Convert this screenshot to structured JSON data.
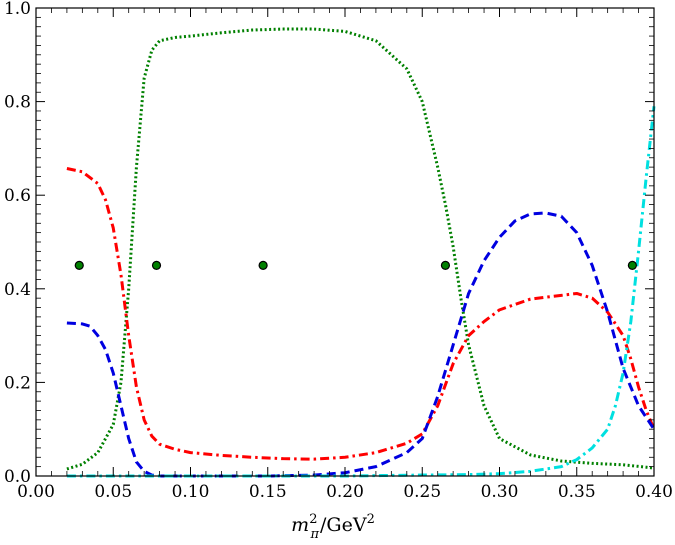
{
  "chart_data": {
    "type": "line",
    "title": "",
    "xlabel": {
      "base": "m",
      "sub": "π",
      "sup": "2",
      "rest": "/GeV",
      "rest_sup": "2"
    },
    "ylabel": "",
    "xlim": [
      0.0,
      0.4
    ],
    "ylim": [
      0.0,
      1.0
    ],
    "x_ticks": [
      "0.00",
      "0.05",
      "0.10",
      "0.15",
      "0.20",
      "0.25",
      "0.30",
      "0.35",
      "0.40"
    ],
    "x_tick_values": [
      0.0,
      0.05,
      0.1,
      0.15,
      0.2,
      0.25,
      0.3,
      0.35,
      0.4
    ],
    "y_ticks": [
      "0.0",
      "0.2",
      "0.4",
      "0.6",
      "0.8",
      "1.0"
    ],
    "y_tick_values": [
      0.0,
      0.2,
      0.4,
      0.6,
      0.8,
      1.0
    ],
    "grid": false,
    "series": [
      {
        "name": "green-dotted",
        "color": "#008000",
        "style": "dotted",
        "x": [
          0.02,
          0.03,
          0.04,
          0.05,
          0.055,
          0.06,
          0.065,
          0.07,
          0.075,
          0.08,
          0.09,
          0.1,
          0.12,
          0.14,
          0.16,
          0.18,
          0.2,
          0.22,
          0.24,
          0.25,
          0.26,
          0.265,
          0.27,
          0.275,
          0.28,
          0.29,
          0.3,
          0.32,
          0.34,
          0.36,
          0.38,
          0.4
        ],
        "y": [
          0.015,
          0.025,
          0.05,
          0.11,
          0.2,
          0.4,
          0.66,
          0.85,
          0.91,
          0.93,
          0.937,
          0.94,
          0.947,
          0.953,
          0.955,
          0.955,
          0.95,
          0.93,
          0.87,
          0.8,
          0.66,
          0.58,
          0.49,
          0.38,
          0.28,
          0.15,
          0.08,
          0.045,
          0.032,
          0.027,
          0.024,
          0.017
        ]
      },
      {
        "name": "red-dash-dot",
        "color": "#ff0000",
        "style": "dashdot",
        "x": [
          0.02,
          0.03,
          0.04,
          0.045,
          0.05,
          0.055,
          0.06,
          0.065,
          0.07,
          0.075,
          0.08,
          0.09,
          0.1,
          0.12,
          0.14,
          0.16,
          0.18,
          0.2,
          0.22,
          0.24,
          0.25,
          0.26,
          0.27,
          0.28,
          0.29,
          0.3,
          0.32,
          0.34,
          0.35,
          0.36,
          0.37,
          0.38,
          0.385,
          0.39,
          0.395,
          0.4
        ],
        "y": [
          0.657,
          0.65,
          0.625,
          0.59,
          0.53,
          0.43,
          0.3,
          0.19,
          0.12,
          0.085,
          0.068,
          0.057,
          0.05,
          0.044,
          0.04,
          0.037,
          0.036,
          0.04,
          0.05,
          0.07,
          0.09,
          0.15,
          0.24,
          0.3,
          0.33,
          0.355,
          0.378,
          0.386,
          0.39,
          0.38,
          0.35,
          0.3,
          0.25,
          0.19,
          0.14,
          0.1
        ]
      },
      {
        "name": "blue-dashed",
        "color": "#0000e0",
        "style": "dashed",
        "x": [
          0.02,
          0.03,
          0.035,
          0.04,
          0.045,
          0.05,
          0.055,
          0.06,
          0.065,
          0.07,
          0.075,
          0.08,
          0.1,
          0.15,
          0.18,
          0.2,
          0.22,
          0.24,
          0.25,
          0.26,
          0.27,
          0.28,
          0.29,
          0.3,
          0.31,
          0.32,
          0.33,
          0.34,
          0.35,
          0.36,
          0.37,
          0.38,
          0.39,
          0.4
        ],
        "y": [
          0.327,
          0.325,
          0.32,
          0.3,
          0.27,
          0.22,
          0.15,
          0.08,
          0.03,
          0.01,
          0.002,
          0.0,
          0.0,
          0.0,
          0.002,
          0.007,
          0.02,
          0.05,
          0.08,
          0.17,
          0.28,
          0.39,
          0.46,
          0.51,
          0.545,
          0.56,
          0.562,
          0.555,
          0.52,
          0.45,
          0.35,
          0.23,
          0.15,
          0.1
        ]
      },
      {
        "name": "cyan-dash-dot",
        "color": "#00e0e0",
        "style": "dashdot",
        "x": [
          0.02,
          0.1,
          0.15,
          0.2,
          0.25,
          0.28,
          0.3,
          0.32,
          0.34,
          0.35,
          0.36,
          0.37,
          0.375,
          0.38,
          0.385,
          0.39,
          0.395,
          0.4
        ],
        "y": [
          0.0,
          0.0,
          0.0,
          0.0,
          0.002,
          0.003,
          0.005,
          0.01,
          0.02,
          0.035,
          0.06,
          0.1,
          0.15,
          0.22,
          0.33,
          0.48,
          0.64,
          0.79
        ]
      }
    ],
    "markers": {
      "name": "points",
      "color": "#008000",
      "edge": "#000000",
      "x": [
        0.028,
        0.078,
        0.147,
        0.265,
        0.386
      ],
      "y": [
        0.45,
        0.45,
        0.45,
        0.45,
        0.45
      ]
    }
  }
}
